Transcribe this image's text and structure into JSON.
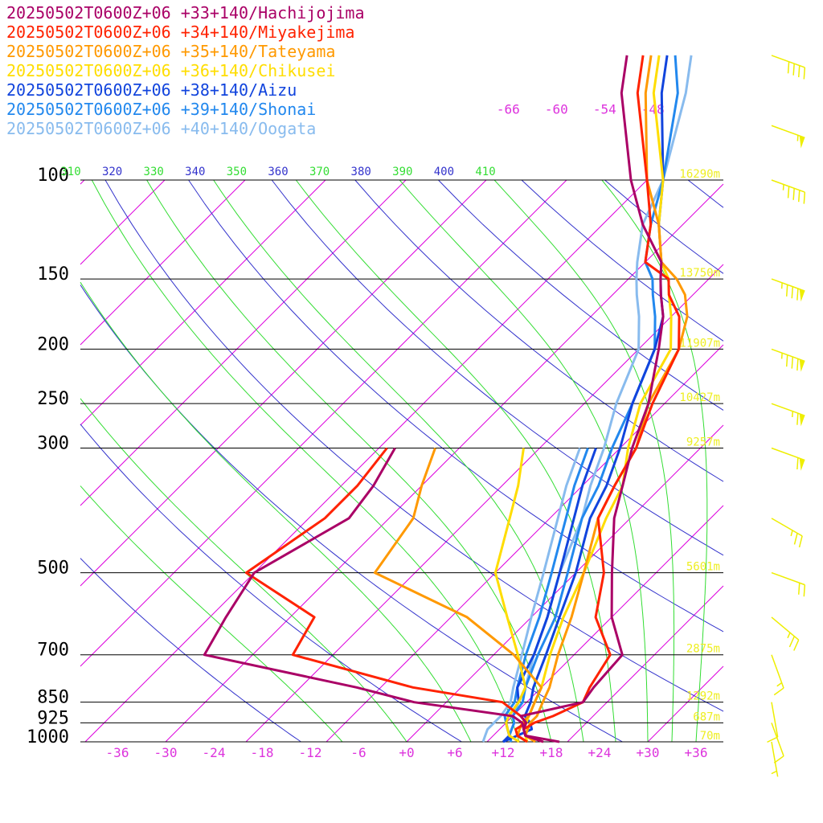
{
  "chart_data": {
    "type": "line",
    "title": "",
    "xlabel": "",
    "ylabel": "",
    "pressure_levels": [
      {
        "p": 100,
        "label": "100",
        "height": "16290m"
      },
      {
        "p": 150,
        "label": "150",
        "height": "13750m"
      },
      {
        "p": 200,
        "label": "200",
        "height": "11907m"
      },
      {
        "p": 250,
        "label": "250",
        "height": "10427m"
      },
      {
        "p": 300,
        "label": "300",
        "height": "9257m"
      },
      {
        "p": 500,
        "label": "500",
        "height": "5601m"
      },
      {
        "p": 700,
        "label": "700",
        "height": "2875m"
      },
      {
        "p": 850,
        "label": "850",
        "height": "1292m"
      },
      {
        "p": 925,
        "label": "925",
        "height": "687m"
      },
      {
        "p": 1000,
        "label": "1000",
        "height": "70m"
      }
    ],
    "temperature_ticks": [
      "-36",
      "-30",
      "-24",
      "-18",
      "-12",
      "-6",
      "+0",
      "+6",
      "+12",
      "+18",
      "+24",
      "+30",
      "+36"
    ],
    "isotherm_labels_top": [
      "-66",
      "-60",
      "-54",
      "-48"
    ],
    "theta_labels": [
      "310",
      "320",
      "330",
      "340",
      "350",
      "360",
      "370",
      "380",
      "390",
      "400",
      "410"
    ],
    "colors": {
      "isotherm": "#dd00dd",
      "dry_adiabat": "#3333cc",
      "moist_adiabat": "#33dd33",
      "isobar": "#000000",
      "height_label": "#eeee22",
      "wind_barb": "#eeee00",
      "axis_label": "#dd33dd"
    },
    "series": [
      {
        "name": "20250502T0600Z+06 +33+140/Hachijojima",
        "color": "#aa0066",
        "temperature": [
          [
            1000,
            19
          ],
          [
            975,
            14
          ],
          [
            950,
            13
          ],
          [
            925,
            12.5
          ],
          [
            900,
            11
          ],
          [
            850,
            17
          ],
          [
            800,
            16.5
          ],
          [
            700,
            16
          ],
          [
            600,
            10
          ],
          [
            500,
            4.5
          ],
          [
            400,
            -2
          ],
          [
            350,
            -5
          ],
          [
            300,
            -8.5
          ],
          [
            250,
            -12
          ],
          [
            200,
            -17.5
          ],
          [
            175,
            -21
          ],
          [
            160,
            -24
          ],
          [
            150,
            -26
          ],
          [
            140,
            -28
          ],
          [
            120,
            -35
          ],
          [
            100,
            -42
          ],
          [
            70,
            -54
          ],
          [
            60,
            -58
          ]
        ],
        "dewpoint": [
          [
            1000,
            17
          ],
          [
            975,
            14
          ],
          [
            950,
            13
          ],
          [
            925,
            12
          ],
          [
            900,
            10
          ],
          [
            850,
            -4
          ],
          [
            800,
            -13
          ],
          [
            700,
            -36
          ],
          [
            600,
            -38
          ],
          [
            500,
            -40
          ],
          [
            400,
            -35
          ],
          [
            350,
            -36
          ],
          [
            300,
            -38
          ]
        ]
      },
      {
        "name": "20250502T0600Z+06 +34+140/Miyakejima",
        "color": "#ff2200",
        "temperature": [
          [
            1000,
            17
          ],
          [
            975,
            14
          ],
          [
            950,
            13
          ],
          [
            925,
            13.5
          ],
          [
            900,
            15
          ],
          [
            850,
            17
          ],
          [
            800,
            16
          ],
          [
            700,
            14.5
          ],
          [
            600,
            8
          ],
          [
            500,
            3.5
          ],
          [
            400,
            -4
          ],
          [
            350,
            -6
          ],
          [
            300,
            -8
          ],
          [
            250,
            -11.5
          ],
          [
            200,
            -15
          ],
          [
            175,
            -19
          ],
          [
            160,
            -23
          ],
          [
            150,
            -25
          ],
          [
            140,
            -30
          ],
          [
            120,
            -34
          ],
          [
            100,
            -40
          ],
          [
            70,
            -52
          ],
          [
            60,
            -56
          ]
        ],
        "dewpoint": [
          [
            1000,
            15
          ],
          [
            975,
            13
          ],
          [
            950,
            12
          ],
          [
            925,
            12.5
          ],
          [
            900,
            11
          ],
          [
            850,
            7
          ],
          [
            800,
            -6
          ],
          [
            700,
            -25
          ],
          [
            600,
            -27
          ],
          [
            500,
            -41
          ],
          [
            400,
            -38
          ],
          [
            350,
            -38
          ],
          [
            300,
            -39
          ]
        ]
      },
      {
        "name": "20250502T0600Z+06 +35+140/Tateyama",
        "color": "#ff9900",
        "temperature": [
          [
            1000,
            16
          ],
          [
            975,
            14
          ],
          [
            950,
            13.5
          ],
          [
            925,
            13
          ],
          [
            900,
            13
          ],
          [
            850,
            12
          ],
          [
            800,
            11
          ],
          [
            700,
            8
          ],
          [
            600,
            5
          ],
          [
            500,
            1
          ],
          [
            400,
            -4
          ],
          [
            350,
            -6
          ],
          [
            300,
            -8
          ],
          [
            250,
            -12
          ],
          [
            200,
            -15
          ],
          [
            175,
            -18
          ],
          [
            160,
            -21
          ],
          [
            150,
            -24
          ],
          [
            140,
            -28
          ],
          [
            120,
            -33
          ],
          [
            100,
            -40
          ],
          [
            70,
            -51
          ],
          [
            60,
            -55
          ]
        ],
        "dewpoint": [
          [
            1000,
            15
          ],
          [
            975,
            13
          ],
          [
            950,
            12.5
          ],
          [
            925,
            12
          ],
          [
            900,
            12
          ],
          [
            850,
            11
          ],
          [
            800,
            10
          ],
          [
            700,
            2.5
          ],
          [
            600,
            -8
          ],
          [
            500,
            -25
          ],
          [
            400,
            -27
          ],
          [
            350,
            -30
          ],
          [
            300,
            -33
          ]
        ]
      },
      {
        "name": "20250502T0600Z+06 +36+140/Chikusei",
        "color": "#ffdd00",
        "temperature": [
          [
            1000,
            15
          ],
          [
            975,
            14
          ],
          [
            950,
            13
          ],
          [
            925,
            12.5
          ],
          [
            900,
            12
          ],
          [
            850,
            11
          ],
          [
            800,
            10
          ],
          [
            700,
            7
          ],
          [
            600,
            4
          ],
          [
            500,
            1
          ],
          [
            400,
            -3
          ],
          [
            350,
            -5
          ],
          [
            300,
            -9
          ],
          [
            250,
            -13
          ],
          [
            200,
            -16
          ],
          [
            175,
            -20
          ],
          [
            160,
            -23
          ],
          [
            150,
            -25
          ],
          [
            140,
            -28
          ],
          [
            120,
            -33
          ],
          [
            100,
            -38
          ],
          [
            70,
            -50
          ],
          [
            60,
            -54
          ]
        ],
        "dewpoint": [
          [
            1000,
            14
          ],
          [
            975,
            12
          ],
          [
            950,
            11
          ],
          [
            925,
            10
          ],
          [
            900,
            9.5
          ],
          [
            850,
            9
          ],
          [
            800,
            8
          ],
          [
            700,
            3
          ],
          [
            600,
            -3
          ],
          [
            500,
            -10
          ],
          [
            400,
            -15
          ],
          [
            350,
            -18
          ],
          [
            300,
            -22
          ]
        ]
      },
      {
        "name": "20250502T0600Z+06 +38+140/Aizu",
        "color": "#1144dd",
        "temperature": [
          [
            1000,
            12
          ],
          [
            975,
            13
          ],
          [
            950,
            14
          ],
          [
            925,
            13
          ],
          [
            900,
            11.5
          ],
          [
            850,
            10.5
          ],
          [
            800,
            9
          ],
          [
            700,
            6.5
          ],
          [
            600,
            3.5
          ],
          [
            500,
            0
          ],
          [
            400,
            -5
          ],
          [
            350,
            -7
          ],
          [
            300,
            -10
          ],
          [
            250,
            -14
          ],
          [
            200,
            -18
          ],
          [
            175,
            -21
          ],
          [
            160,
            -24
          ],
          [
            150,
            -26
          ],
          [
            140,
            -28
          ],
          [
            120,
            -33
          ],
          [
            100,
            -38
          ],
          [
            70,
            -49
          ],
          [
            60,
            -53
          ]
        ],
        "dewpoint": [
          [
            1000,
            12
          ],
          [
            975,
            12
          ],
          [
            950,
            11
          ],
          [
            925,
            10
          ],
          [
            900,
            9.5
          ],
          [
            850,
            9
          ],
          [
            800,
            7
          ],
          [
            700,
            5
          ],
          [
            600,
            2
          ],
          [
            500,
            -2
          ],
          [
            400,
            -7
          ],
          [
            350,
            -10
          ],
          [
            300,
            -13
          ]
        ]
      },
      {
        "name": "20250502T0600Z+06 +39+140/Shonai",
        "color": "#2288ee",
        "temperature": [
          [
            1000,
            13
          ],
          [
            975,
            12
          ],
          [
            950,
            11.5
          ],
          [
            925,
            11
          ],
          [
            900,
            10
          ],
          [
            850,
            9.5
          ],
          [
            800,
            8
          ],
          [
            700,
            5.5
          ],
          [
            600,
            3
          ],
          [
            500,
            -1
          ],
          [
            400,
            -6
          ],
          [
            350,
            -8
          ],
          [
            300,
            -11
          ],
          [
            250,
            -14
          ],
          [
            200,
            -18
          ],
          [
            175,
            -22
          ],
          [
            160,
            -25
          ],
          [
            150,
            -27
          ],
          [
            140,
            -30
          ],
          [
            120,
            -34
          ],
          [
            100,
            -38
          ],
          [
            70,
            -47
          ],
          [
            60,
            -52
          ]
        ],
        "dewpoint": [
          [
            1000,
            13
          ],
          [
            975,
            12
          ],
          [
            950,
            11
          ],
          [
            925,
            10
          ],
          [
            900,
            9
          ],
          [
            850,
            8.5
          ],
          [
            800,
            7
          ],
          [
            700,
            4
          ],
          [
            600,
            1
          ],
          [
            500,
            -3
          ],
          [
            400,
            -8
          ],
          [
            350,
            -11
          ],
          [
            300,
            -14
          ]
        ]
      },
      {
        "name": "20250502T0600Z+06 +40+140/Oogata",
        "color": "#88bbee",
        "temperature": [
          [
            1000,
            13
          ],
          [
            975,
            12
          ],
          [
            950,
            11.5
          ],
          [
            925,
            11
          ],
          [
            900,
            10
          ],
          [
            850,
            9
          ],
          [
            800,
            8
          ],
          [
            700,
            5
          ],
          [
            600,
            2
          ],
          [
            500,
            -2
          ],
          [
            400,
            -6
          ],
          [
            350,
            -9
          ],
          [
            300,
            -12
          ],
          [
            250,
            -16
          ],
          [
            200,
            -20
          ],
          [
            175,
            -24
          ],
          [
            160,
            -27
          ],
          [
            150,
            -29
          ],
          [
            140,
            -31
          ],
          [
            120,
            -35
          ],
          [
            100,
            -38
          ],
          [
            70,
            -46
          ],
          [
            60,
            -50
          ]
        ],
        "dewpoint": [
          [
            1000,
            9.5
          ],
          [
            975,
            9
          ],
          [
            950,
            8.5
          ],
          [
            925,
            8.5
          ],
          [
            900,
            8.5
          ],
          [
            850,
            8
          ],
          [
            800,
            6.5
          ],
          [
            700,
            3.5
          ],
          [
            600,
            0
          ],
          [
            500,
            -4
          ],
          [
            400,
            -9
          ],
          [
            350,
            -12
          ],
          [
            300,
            -15
          ]
        ]
      }
    ],
    "wind_barbs": [
      {
        "p": 60,
        "dir": 250,
        "kt": 40
      },
      {
        "p": 80,
        "dir": 250,
        "kt": 55
      },
      {
        "p": 100,
        "dir": 250,
        "kt": 45
      },
      {
        "p": 150,
        "dir": 250,
        "kt": 85
      },
      {
        "p": 200,
        "dir": 250,
        "kt": 85
      },
      {
        "p": 250,
        "dir": 250,
        "kt": 65
      },
      {
        "p": 300,
        "dir": 250,
        "kt": 60
      },
      {
        "p": 400,
        "dir": 240,
        "kt": 25
      },
      {
        "p": 500,
        "dir": 250,
        "kt": 20
      },
      {
        "p": 600,
        "dir": 230,
        "kt": 25
      },
      {
        "p": 700,
        "dir": 200,
        "kt": 15
      },
      {
        "p": 850,
        "dir": 190,
        "kt": 10
      },
      {
        "p": 925,
        "dir": 200,
        "kt": 10
      },
      {
        "p": 1000,
        "dir": 190,
        "kt": 5
      }
    ]
  }
}
